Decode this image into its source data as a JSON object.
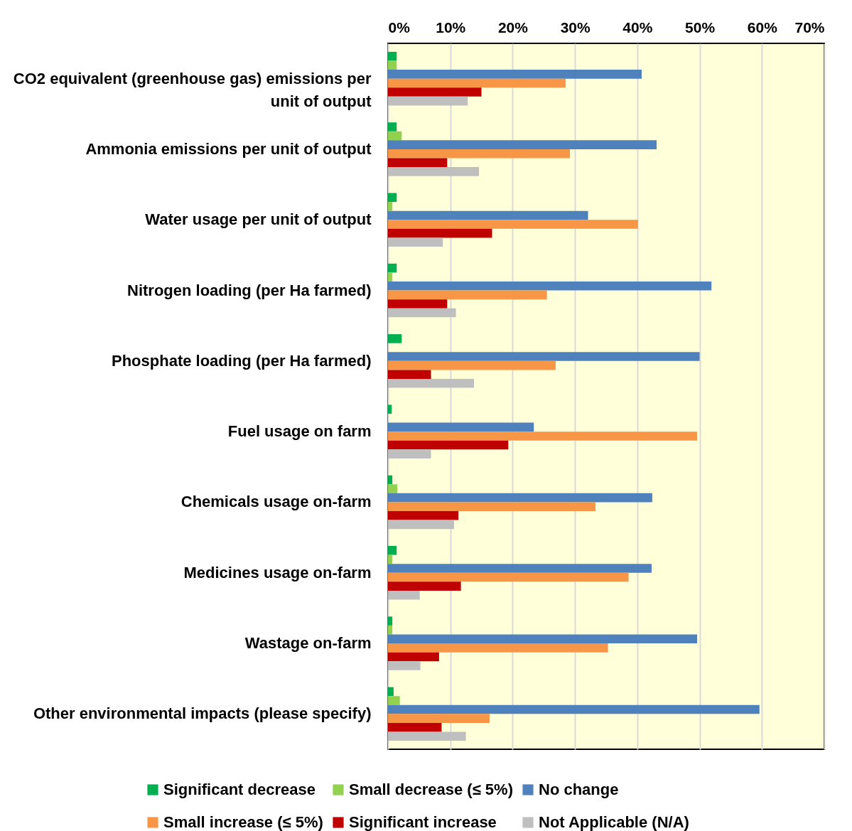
{
  "chart_data": {
    "type": "bar",
    "orientation": "horizontal",
    "categories": [
      "CO2 equivalent (greenhouse gas) emissions per unit of output",
      "Ammonia emissions per unit of output",
      "Water usage per unit of output",
      "Nitrogen loading (per Ha farmed)",
      "Phosphate loading (per Ha farmed)",
      "Fuel usage on farm",
      "Chemicals usage on-farm",
      "Medicines usage on-farm",
      "Wastage on-farm",
      "Other environmental impacts (please specify)"
    ],
    "series": [
      {
        "name": "Significant decrease",
        "color": "#00b050",
        "values": [
          1.4,
          1.4,
          1.4,
          1.4,
          2.2,
          0.6,
          0.7,
          1.4,
          0.7,
          0.9
        ]
      },
      {
        "name": "Small decrease (≤ 5%)",
        "color": "#92d050",
        "values": [
          1.4,
          2.2,
          0.7,
          0.7,
          null,
          null,
          1.5,
          0.7,
          0.7,
          1.9
        ]
      },
      {
        "name": "No change",
        "color": "#4f81bd",
        "values": [
          40.7,
          43.1,
          32.1,
          51.9,
          50.0,
          23.4,
          42.4,
          42.3,
          49.6,
          59.6
        ]
      },
      {
        "name": "Small increase (≤ 5%)",
        "color": "#f79646",
        "values": [
          28.5,
          29.2,
          40.1,
          25.5,
          26.9,
          49.6,
          33.3,
          38.6,
          35.3,
          16.3
        ]
      },
      {
        "name": "Significant increase",
        "color": "#c00000",
        "values": [
          15.0,
          9.5,
          16.7,
          9.5,
          6.9,
          19.3,
          11.3,
          11.7,
          8.2,
          8.6
        ]
      },
      {
        "name": "Not Applicable (N/A)",
        "color": "#bfbfbf",
        "values": [
          12.8,
          14.6,
          8.8,
          10.9,
          13.8,
          6.9,
          10.6,
          5.1,
          5.2,
          12.5
        ]
      }
    ],
    "xlim": [
      0,
      70
    ],
    "xticks": [
      {
        "value": 0,
        "label": "0%"
      },
      {
        "value": 10,
        "label": "10%"
      },
      {
        "value": 20,
        "label": "20%"
      },
      {
        "value": 30,
        "label": "30%"
      },
      {
        "value": 40,
        "label": "40%"
      },
      {
        "value": 50,
        "label": "50%"
      },
      {
        "value": 60,
        "label": "60%"
      },
      {
        "value": 70,
        "label": "70%"
      }
    ],
    "grid": "x",
    "legend": "bottom"
  }
}
